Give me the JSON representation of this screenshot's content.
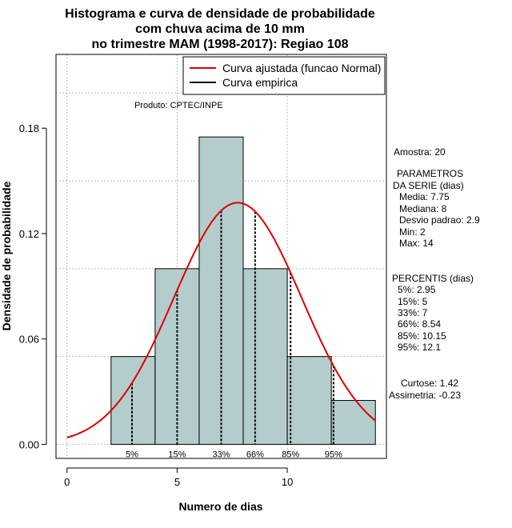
{
  "chart_data": {
    "type": "bar",
    "title": [
      "Histograma e curva de densidade de probabilidade",
      "com chuva acima de 10 mm",
      "no trimestre MAM (1998-2017): Regiao 108"
    ],
    "xlabel": "Numero de dias",
    "ylabel": "Densidade de probabilidade",
    "xlim": [
      -0.5,
      14.5
    ],
    "ylim": [
      -0.008,
      0.222
    ],
    "x_ticks": [
      0,
      5,
      10
    ],
    "y_ticks": [
      0.0,
      0.06,
      0.12,
      0.18
    ],
    "y_tick_labels": [
      "0.00",
      "0.06",
      "0.12",
      "0.18"
    ],
    "bins": [
      {
        "start": 2,
        "end": 4,
        "density": 0.05
      },
      {
        "start": 4,
        "end": 6,
        "density": 0.1
      },
      {
        "start": 6,
        "end": 8,
        "density": 0.175
      },
      {
        "start": 8,
        "end": 10,
        "density": 0.1
      },
      {
        "start": 10,
        "end": 12,
        "density": 0.05
      },
      {
        "start": 12,
        "end": 14,
        "density": 0.025
      }
    ],
    "bar_color": "#b5cccc",
    "curve_color": "#dd0000",
    "normal_fit": {
      "mean": 7.75,
      "sd": 2.9,
      "x_range": [
        0,
        14
      ]
    },
    "percentile_lines": [
      {
        "label": "5%",
        "x": 2.95
      },
      {
        "label": "15%",
        "x": 5
      },
      {
        "label": "33%",
        "x": 7
      },
      {
        "label": "66%",
        "x": 8.54
      },
      {
        "label": "85%",
        "x": 10.15
      },
      {
        "label": "95%",
        "x": 12.1
      }
    ],
    "legend": {
      "placement": "top-right",
      "entries": [
        {
          "label": "Curva ajustada (funcao Normal)",
          "color": "#dd0000"
        },
        {
          "label": "Curva empirica",
          "color": "#000000"
        }
      ]
    },
    "grid": true,
    "annotation": "Produto: CPTEC/INPE"
  },
  "stats_panel": {
    "amostra": "Amostra: 20",
    "parametros_title": [
      "PARAMETROS",
      "DA SERIE (dias)"
    ],
    "parametros": [
      "Media: 7.75",
      "Mediana: 8",
      "Desvio padrao: 2.9",
      "Min: 2",
      "Max: 14"
    ],
    "percentis_title": "PERCENTIS (dias)",
    "percentis": [
      "5%: 2.95",
      "15%: 5",
      "33%: 7",
      "66%: 8.54",
      "85%: 10.15",
      "95%: 12.1"
    ],
    "curtose": "Curtose: 1.42",
    "assimetria": "Assimetria: -0.23"
  }
}
